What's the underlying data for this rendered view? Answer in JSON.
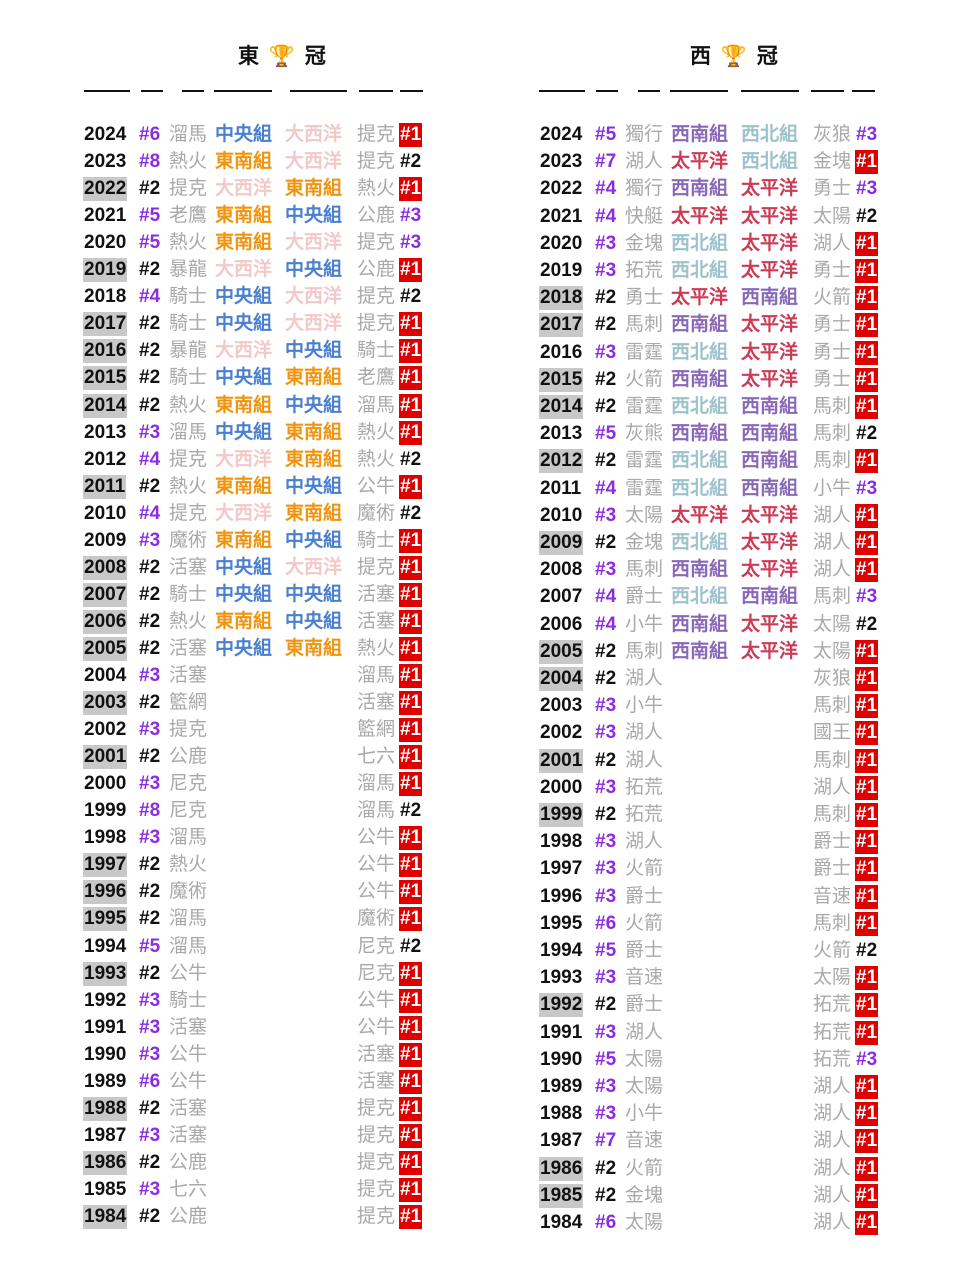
{
  "colors": {
    "中央組": "#4a7fd0",
    "東南組": "#f0940f",
    "大西洋": "#f2c9c9",
    "西南組": "#8a68b8",
    "西北組": "#9cc3cc",
    "太平洋": "#cc3b55",
    "champion_bg": "#e00000",
    "seed_highlight": "#8b2be2",
    "year_highlight": "#c8c8c8"
  },
  "east": {
    "title": "東 🏆 冠",
    "rows": [
      {
        "year": "2024",
        "seed": "#6",
        "team": "溜馬",
        "d1": "中央組",
        "d2": "大西洋",
        "opp": "提克",
        "res": "#1",
        "yh": false
      },
      {
        "year": "2023",
        "seed": "#8",
        "team": "熱火",
        "d1": "東南組",
        "d2": "大西洋",
        "opp": "提克",
        "res": "#2",
        "yh": false
      },
      {
        "year": "2022",
        "seed": "#2",
        "team": "提克",
        "d1": "大西洋",
        "d2": "東南組",
        "opp": "熱火",
        "res": "#1",
        "yh": true
      },
      {
        "year": "2021",
        "seed": "#5",
        "team": "老鷹",
        "d1": "東南組",
        "d2": "中央組",
        "opp": "公鹿",
        "res": "#3",
        "yh": false
      },
      {
        "year": "2020",
        "seed": "#5",
        "team": "熱火",
        "d1": "東南組",
        "d2": "大西洋",
        "opp": "提克",
        "res": "#3",
        "yh": false
      },
      {
        "year": "2019",
        "seed": "#2",
        "team": "暴龍",
        "d1": "大西洋",
        "d2": "中央組",
        "opp": "公鹿",
        "res": "#1",
        "yh": true
      },
      {
        "year": "2018",
        "seed": "#4",
        "team": "騎士",
        "d1": "中央組",
        "d2": "大西洋",
        "opp": "提克",
        "res": "#2",
        "yh": false
      },
      {
        "year": "2017",
        "seed": "#2",
        "team": "騎士",
        "d1": "中央組",
        "d2": "大西洋",
        "opp": "提克",
        "res": "#1",
        "yh": true
      },
      {
        "year": "2016",
        "seed": "#2",
        "team": "暴龍",
        "d1": "大西洋",
        "d2": "中央組",
        "opp": "騎士",
        "res": "#1",
        "yh": true
      },
      {
        "year": "2015",
        "seed": "#2",
        "team": "騎士",
        "d1": "中央組",
        "d2": "東南組",
        "opp": "老鷹",
        "res": "#1",
        "yh": true
      },
      {
        "year": "2014",
        "seed": "#2",
        "team": "熱火",
        "d1": "東南組",
        "d2": "中央組",
        "opp": "溜馬",
        "res": "#1",
        "yh": true
      },
      {
        "year": "2013",
        "seed": "#3",
        "team": "溜馬",
        "d1": "中央組",
        "d2": "東南組",
        "opp": "熱火",
        "res": "#1",
        "yh": false
      },
      {
        "year": "2012",
        "seed": "#4",
        "team": "提克",
        "d1": "大西洋",
        "d2": "東南組",
        "opp": "熱火",
        "res": "#2",
        "yh": false
      },
      {
        "year": "2011",
        "seed": "#2",
        "team": "熱火",
        "d1": "東南組",
        "d2": "中央組",
        "opp": "公牛",
        "res": "#1",
        "yh": true
      },
      {
        "year": "2010",
        "seed": "#4",
        "team": "提克",
        "d1": "大西洋",
        "d2": "東南組",
        "opp": "魔術",
        "res": "#2",
        "yh": false
      },
      {
        "year": "2009",
        "seed": "#3",
        "team": "魔術",
        "d1": "東南組",
        "d2": "中央組",
        "opp": "騎士",
        "res": "#1",
        "yh": false
      },
      {
        "year": "2008",
        "seed": "#2",
        "team": "活塞",
        "d1": "中央組",
        "d2": "大西洋",
        "opp": "提克",
        "res": "#1",
        "yh": true
      },
      {
        "year": "2007",
        "seed": "#2",
        "team": "騎士",
        "d1": "中央組",
        "d2": "中央組",
        "opp": "活塞",
        "res": "#1",
        "yh": true
      },
      {
        "year": "2006",
        "seed": "#2",
        "team": "熱火",
        "d1": "東南組",
        "d2": "中央組",
        "opp": "活塞",
        "res": "#1",
        "yh": true
      },
      {
        "year": "2005",
        "seed": "#2",
        "team": "活塞",
        "d1": "中央組",
        "d2": "東南組",
        "opp": "熱火",
        "res": "#1",
        "yh": true
      },
      {
        "year": "2004",
        "seed": "#3",
        "team": "活塞",
        "d1": "",
        "d2": "",
        "opp": "溜馬",
        "res": "#1",
        "yh": false
      },
      {
        "year": "2003",
        "seed": "#2",
        "team": "籃網",
        "d1": "",
        "d2": "",
        "opp": "活塞",
        "res": "#1",
        "yh": true
      },
      {
        "year": "2002",
        "seed": "#3",
        "team": "提克",
        "d1": "",
        "d2": "",
        "opp": "籃網",
        "res": "#1",
        "yh": false
      },
      {
        "year": "2001",
        "seed": "#2",
        "team": "公鹿",
        "d1": "",
        "d2": "",
        "opp": "七六",
        "res": "#1",
        "yh": true
      },
      {
        "year": "2000",
        "seed": "#3",
        "team": "尼克",
        "d1": "",
        "d2": "",
        "opp": "溜馬",
        "res": "#1",
        "yh": false
      },
      {
        "year": "1999",
        "seed": "#8",
        "team": "尼克",
        "d1": "",
        "d2": "",
        "opp": "溜馬",
        "res": "#2",
        "yh": false
      },
      {
        "year": "1998",
        "seed": "#3",
        "team": "溜馬",
        "d1": "",
        "d2": "",
        "opp": "公牛",
        "res": "#1",
        "yh": false
      },
      {
        "year": "1997",
        "seed": "#2",
        "team": "熱火",
        "d1": "",
        "d2": "",
        "opp": "公牛",
        "res": "#1",
        "yh": true
      },
      {
        "year": "1996",
        "seed": "#2",
        "team": "魔術",
        "d1": "",
        "d2": "",
        "opp": "公牛",
        "res": "#1",
        "yh": true
      },
      {
        "year": "1995",
        "seed": "#2",
        "team": "溜馬",
        "d1": "",
        "d2": "",
        "opp": "魔術",
        "res": "#1",
        "yh": true
      },
      {
        "year": "1994",
        "seed": "#5",
        "team": "溜馬",
        "d1": "",
        "d2": "",
        "opp": "尼克",
        "res": "#2",
        "yh": false
      },
      {
        "year": "1993",
        "seed": "#2",
        "team": "公牛",
        "d1": "",
        "d2": "",
        "opp": "尼克",
        "res": "#1",
        "yh": true
      },
      {
        "year": "1992",
        "seed": "#3",
        "team": "騎士",
        "d1": "",
        "d2": "",
        "opp": "公牛",
        "res": "#1",
        "yh": false
      },
      {
        "year": "1991",
        "seed": "#3",
        "team": "活塞",
        "d1": "",
        "d2": "",
        "opp": "公牛",
        "res": "#1",
        "yh": false
      },
      {
        "year": "1990",
        "seed": "#3",
        "team": "公牛",
        "d1": "",
        "d2": "",
        "opp": "活塞",
        "res": "#1",
        "yh": false
      },
      {
        "year": "1989",
        "seed": "#6",
        "team": "公牛",
        "d1": "",
        "d2": "",
        "opp": "活塞",
        "res": "#1",
        "yh": false
      },
      {
        "year": "1988",
        "seed": "#2",
        "team": "活塞",
        "d1": "",
        "d2": "",
        "opp": "提克",
        "res": "#1",
        "yh": true
      },
      {
        "year": "1987",
        "seed": "#3",
        "team": "活塞",
        "d1": "",
        "d2": "",
        "opp": "提克",
        "res": "#1",
        "yh": false
      },
      {
        "year": "1986",
        "seed": "#2",
        "team": "公鹿",
        "d1": "",
        "d2": "",
        "opp": "提克",
        "res": "#1",
        "yh": true
      },
      {
        "year": "1985",
        "seed": "#3",
        "team": "七六",
        "d1": "",
        "d2": "",
        "opp": "提克",
        "res": "#1",
        "yh": false
      },
      {
        "year": "1984",
        "seed": "#2",
        "team": "公鹿",
        "d1": "",
        "d2": "",
        "opp": "提克",
        "res": "#1",
        "yh": true
      }
    ]
  },
  "west": {
    "title": "西 🏆 冠",
    "rows": [
      {
        "year": "2024",
        "seed": "#5",
        "team": "獨行",
        "d1": "西南組",
        "d2": "西北組",
        "opp": "灰狼",
        "res": "#3",
        "yh": false
      },
      {
        "year": "2023",
        "seed": "#7",
        "team": "湖人",
        "d1": "太平洋",
        "d2": "西北組",
        "opp": "金塊",
        "res": "#1",
        "yh": false
      },
      {
        "year": "2022",
        "seed": "#4",
        "team": "獨行",
        "d1": "西南組",
        "d2": "太平洋",
        "opp": "勇士",
        "res": "#3",
        "yh": false
      },
      {
        "year": "2021",
        "seed": "#4",
        "team": "快艇",
        "d1": "太平洋",
        "d2": "太平洋",
        "opp": "太陽",
        "res": "#2",
        "yh": false
      },
      {
        "year": "2020",
        "seed": "#3",
        "team": "金塊",
        "d1": "西北組",
        "d2": "太平洋",
        "opp": "湖人",
        "res": "#1",
        "yh": false
      },
      {
        "year": "2019",
        "seed": "#3",
        "team": "拓荒",
        "d1": "西北組",
        "d2": "太平洋",
        "opp": "勇士",
        "res": "#1",
        "yh": false
      },
      {
        "year": "2018",
        "seed": "#2",
        "team": "勇士",
        "d1": "太平洋",
        "d2": "西南組",
        "opp": "火箭",
        "res": "#1",
        "yh": true
      },
      {
        "year": "2017",
        "seed": "#2",
        "team": "馬刺",
        "d1": "西南組",
        "d2": "太平洋",
        "opp": "勇士",
        "res": "#1",
        "yh": true
      },
      {
        "year": "2016",
        "seed": "#3",
        "team": "雷霆",
        "d1": "西北組",
        "d2": "太平洋",
        "opp": "勇士",
        "res": "#1",
        "yh": false
      },
      {
        "year": "2015",
        "seed": "#2",
        "team": "火箭",
        "d1": "西南組",
        "d2": "太平洋",
        "opp": "勇士",
        "res": "#1",
        "yh": true
      },
      {
        "year": "2014",
        "seed": "#2",
        "team": "雷霆",
        "d1": "西北組",
        "d2": "西南組",
        "opp": "馬刺",
        "res": "#1",
        "yh": true
      },
      {
        "year": "2013",
        "seed": "#5",
        "team": "灰熊",
        "d1": "西南組",
        "d2": "西南組",
        "opp": "馬刺",
        "res": "#2",
        "yh": false
      },
      {
        "year": "2012",
        "seed": "#2",
        "team": "雷霆",
        "d1": "西北組",
        "d2": "西南組",
        "opp": "馬刺",
        "res": "#1",
        "yh": true
      },
      {
        "year": "2011",
        "seed": "#4",
        "team": "雷霆",
        "d1": "西北組",
        "d2": "西南組",
        "opp": "小牛",
        "res": "#3",
        "yh": false
      },
      {
        "year": "2010",
        "seed": "#3",
        "team": "太陽",
        "d1": "太平洋",
        "d2": "太平洋",
        "opp": "湖人",
        "res": "#1",
        "yh": false
      },
      {
        "year": "2009",
        "seed": "#2",
        "team": "金塊",
        "d1": "西北組",
        "d2": "太平洋",
        "opp": "湖人",
        "res": "#1",
        "yh": true
      },
      {
        "year": "2008",
        "seed": "#3",
        "team": "馬刺",
        "d1": "西南組",
        "d2": "太平洋",
        "opp": "湖人",
        "res": "#1",
        "yh": false
      },
      {
        "year": "2007",
        "seed": "#4",
        "team": "爵士",
        "d1": "西北組",
        "d2": "西南組",
        "opp": "馬刺",
        "res": "#3",
        "yh": false
      },
      {
        "year": "2006",
        "seed": "#4",
        "team": "小牛",
        "d1": "西南組",
        "d2": "太平洋",
        "opp": "太陽",
        "res": "#2",
        "yh": false
      },
      {
        "year": "2005",
        "seed": "#2",
        "team": "馬刺",
        "d1": "西南組",
        "d2": "太平洋",
        "opp": "太陽",
        "res": "#1",
        "yh": true
      },
      {
        "year": "2004",
        "seed": "#2",
        "team": "湖人",
        "d1": "",
        "d2": "",
        "opp": "灰狼",
        "res": "#1",
        "yh": true
      },
      {
        "year": "2003",
        "seed": "#3",
        "team": "小牛",
        "d1": "",
        "d2": "",
        "opp": "馬刺",
        "res": "#1",
        "yh": false
      },
      {
        "year": "2002",
        "seed": "#3",
        "team": "湖人",
        "d1": "",
        "d2": "",
        "opp": "國王",
        "res": "#1",
        "yh": false
      },
      {
        "year": "2001",
        "seed": "#2",
        "team": "湖人",
        "d1": "",
        "d2": "",
        "opp": "馬刺",
        "res": "#1",
        "yh": true
      },
      {
        "year": "2000",
        "seed": "#3",
        "team": "拓荒",
        "d1": "",
        "d2": "",
        "opp": "湖人",
        "res": "#1",
        "yh": false
      },
      {
        "year": "1999",
        "seed": "#2",
        "team": "拓荒",
        "d1": "",
        "d2": "",
        "opp": "馬刺",
        "res": "#1",
        "yh": true
      },
      {
        "year": "1998",
        "seed": "#3",
        "team": "湖人",
        "d1": "",
        "d2": "",
        "opp": "爵士",
        "res": "#1",
        "yh": false
      },
      {
        "year": "1997",
        "seed": "#3",
        "team": "火箭",
        "d1": "",
        "d2": "",
        "opp": "爵士",
        "res": "#1",
        "yh": false
      },
      {
        "year": "1996",
        "seed": "#3",
        "team": "爵士",
        "d1": "",
        "d2": "",
        "opp": "音速",
        "res": "#1",
        "yh": false
      },
      {
        "year": "1995",
        "seed": "#6",
        "team": "火箭",
        "d1": "",
        "d2": "",
        "opp": "馬刺",
        "res": "#1",
        "yh": false
      },
      {
        "year": "1994",
        "seed": "#5",
        "team": "爵士",
        "d1": "",
        "d2": "",
        "opp": "火箭",
        "res": "#2",
        "yh": false
      },
      {
        "year": "1993",
        "seed": "#3",
        "team": "音速",
        "d1": "",
        "d2": "",
        "opp": "太陽",
        "res": "#1",
        "yh": false
      },
      {
        "year": "1992",
        "seed": "#2",
        "team": "爵士",
        "d1": "",
        "d2": "",
        "opp": "拓荒",
        "res": "#1",
        "yh": true
      },
      {
        "year": "1991",
        "seed": "#3",
        "team": "湖人",
        "d1": "",
        "d2": "",
        "opp": "拓荒",
        "res": "#1",
        "yh": false
      },
      {
        "year": "1990",
        "seed": "#5",
        "team": "太陽",
        "d1": "",
        "d2": "",
        "opp": "拓荒",
        "res": "#3",
        "yh": false
      },
      {
        "year": "1989",
        "seed": "#3",
        "team": "太陽",
        "d1": "",
        "d2": "",
        "opp": "湖人",
        "res": "#1",
        "yh": false
      },
      {
        "year": "1988",
        "seed": "#3",
        "team": "小牛",
        "d1": "",
        "d2": "",
        "opp": "湖人",
        "res": "#1",
        "yh": false
      },
      {
        "year": "1987",
        "seed": "#7",
        "team": "音速",
        "d1": "",
        "d2": "",
        "opp": "湖人",
        "res": "#1",
        "yh": false
      },
      {
        "year": "1986",
        "seed": "#2",
        "team": "火箭",
        "d1": "",
        "d2": "",
        "opp": "湖人",
        "res": "#1",
        "yh": true
      },
      {
        "year": "1985",
        "seed": "#2",
        "team": "金塊",
        "d1": "",
        "d2": "",
        "opp": "湖人",
        "res": "#1",
        "yh": true
      },
      {
        "year": "1984",
        "seed": "#6",
        "team": "太陽",
        "d1": "",
        "d2": "",
        "opp": "湖人",
        "res": "#1",
        "yh": false
      }
    ]
  }
}
